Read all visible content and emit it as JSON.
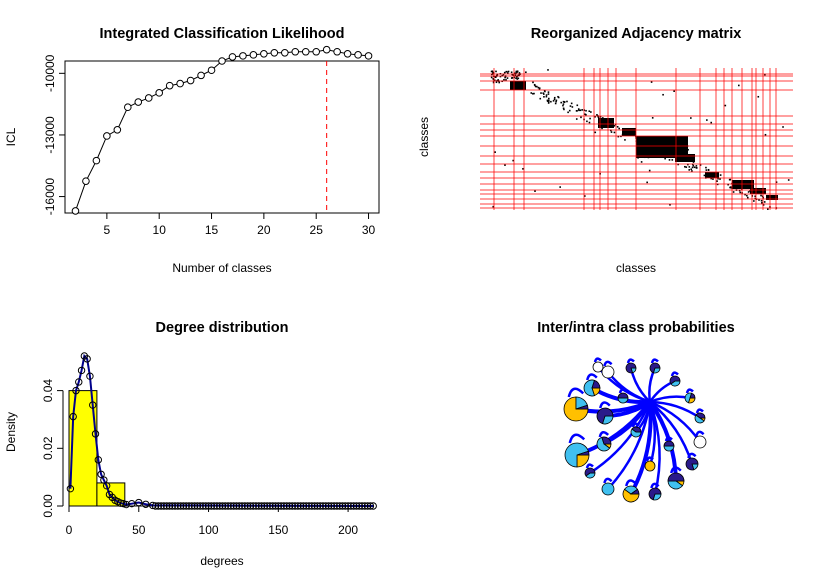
{
  "chart_data": [
    {
      "type": "line",
      "title": "Integrated Classification Likelihood",
      "xlabel": "Number of classes",
      "ylabel": "ICL",
      "xlim": [
        1,
        31
      ],
      "ylim": [
        -16800,
        -9400
      ],
      "xticks": [
        5,
        10,
        15,
        20,
        25,
        30
      ],
      "yticks": [
        -10000,
        -13000,
        -16000
      ],
      "x": [
        2,
        3,
        4,
        5,
        6,
        7,
        8,
        9,
        10,
        11,
        12,
        13,
        14,
        15,
        16,
        17,
        18,
        19,
        20,
        21,
        22,
        23,
        24,
        25,
        26,
        27,
        28,
        29,
        30
      ],
      "y": [
        -16700,
        -15250,
        -14250,
        -13050,
        -12750,
        -11650,
        -11400,
        -11200,
        -10950,
        -10600,
        -10500,
        -10350,
        -10100,
        -9850,
        -9400,
        -9200,
        -9150,
        -9100,
        -9050,
        -9000,
        -9000,
        -8950,
        -8950,
        -8950,
        -8850,
        -8950,
        -9050,
        -9100,
        -9150
      ],
      "marker": {
        "x": 26,
        "color": "#ff0000",
        "style": "dashed"
      },
      "grid": false
    },
    {
      "type": "heatmap",
      "title": "Reorganized Adjacency matrix",
      "xlabel": "classes",
      "ylabel": "classes",
      "grid": false
    },
    {
      "type": "bar",
      "title": "Degree distribution",
      "xlabel": "degrees",
      "ylabel": "Density",
      "xlim": [
        0,
        220
      ],
      "ylim": [
        0,
        0.052
      ],
      "xticks": [
        0,
        50,
        100,
        150,
        200
      ],
      "yticks": [
        0.0,
        0.02,
        0.04
      ],
      "bins": [
        {
          "from": 0,
          "to": 20,
          "density": 0.04
        },
        {
          "from": 20,
          "to": 40,
          "density": 0.008
        },
        {
          "from": 40,
          "to": 60,
          "density": 0.0
        },
        {
          "from": 60,
          "to": 80,
          "density": 0.0
        }
      ],
      "curve": {
        "x": [
          1,
          3,
          5,
          7,
          9,
          11,
          13,
          15,
          17,
          19,
          21,
          23,
          25,
          27,
          29,
          31,
          33,
          35,
          37,
          39,
          41,
          45,
          50,
          55,
          60
        ],
        "y": [
          0.006,
          0.031,
          0.04,
          0.043,
          0.047,
          0.052,
          0.051,
          0.045,
          0.035,
          0.025,
          0.016,
          0.011,
          0.009,
          0.007,
          0.004,
          0.003,
          0.002,
          0.0015,
          0.001,
          0.0008,
          0.0005,
          0.0008,
          0.0012,
          0.0006,
          0.0002
        ]
      },
      "colors": {
        "bars": "#ffff00",
        "curve": "#00008b"
      },
      "grid": false
    },
    {
      "type": "network",
      "title": "Inter/intra class probabilities",
      "colors": {
        "edges": "#0000ff",
        "slice1": "#ffc000",
        "slice2": "#40c0f0",
        "slice3": "#2a1a8a"
      }
    }
  ]
}
